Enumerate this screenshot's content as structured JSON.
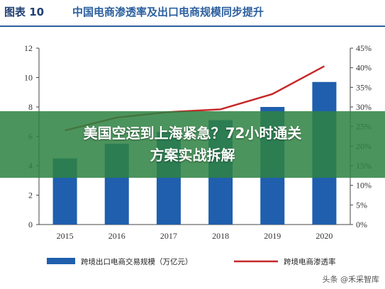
{
  "figure": {
    "number": "图表 10",
    "title": "中国电商渗透率及出口电商规模同步提升"
  },
  "banner": {
    "line1": "美国空运到上海紧急？72小时通关",
    "line2": "方案实战拆解"
  },
  "watermark": "头条 @禾采智库",
  "chart_data": {
    "type": "bar",
    "categories": [
      "2015",
      "2016",
      "2017",
      "2018",
      "2019",
      "2020"
    ],
    "series": [
      {
        "name": "跨境出口电商交易规模（万亿元）",
        "kind": "bar",
        "axis": "left",
        "color": "#1f5fae",
        "values": [
          4.5,
          5.5,
          6.3,
          7.1,
          8.0,
          9.7
        ]
      },
      {
        "name": "跨境电商渗透率",
        "kind": "line",
        "axis": "right",
        "color": "#c62828",
        "values": [
          0.24,
          0.273,
          0.287,
          0.294,
          0.333,
          0.404
        ]
      }
    ],
    "y_left": {
      "min": 0,
      "max": 12,
      "ticks": [
        "0",
        "2",
        "4",
        "6",
        "8",
        "10",
        "12"
      ]
    },
    "y_right": {
      "min": 0,
      "max": 0.45,
      "ticks": [
        "0%",
        "5%",
        "10%",
        "15%",
        "20%",
        "25%",
        "30%",
        "35%",
        "40%",
        "45%"
      ]
    },
    "grid": false,
    "legend": "bottom"
  }
}
